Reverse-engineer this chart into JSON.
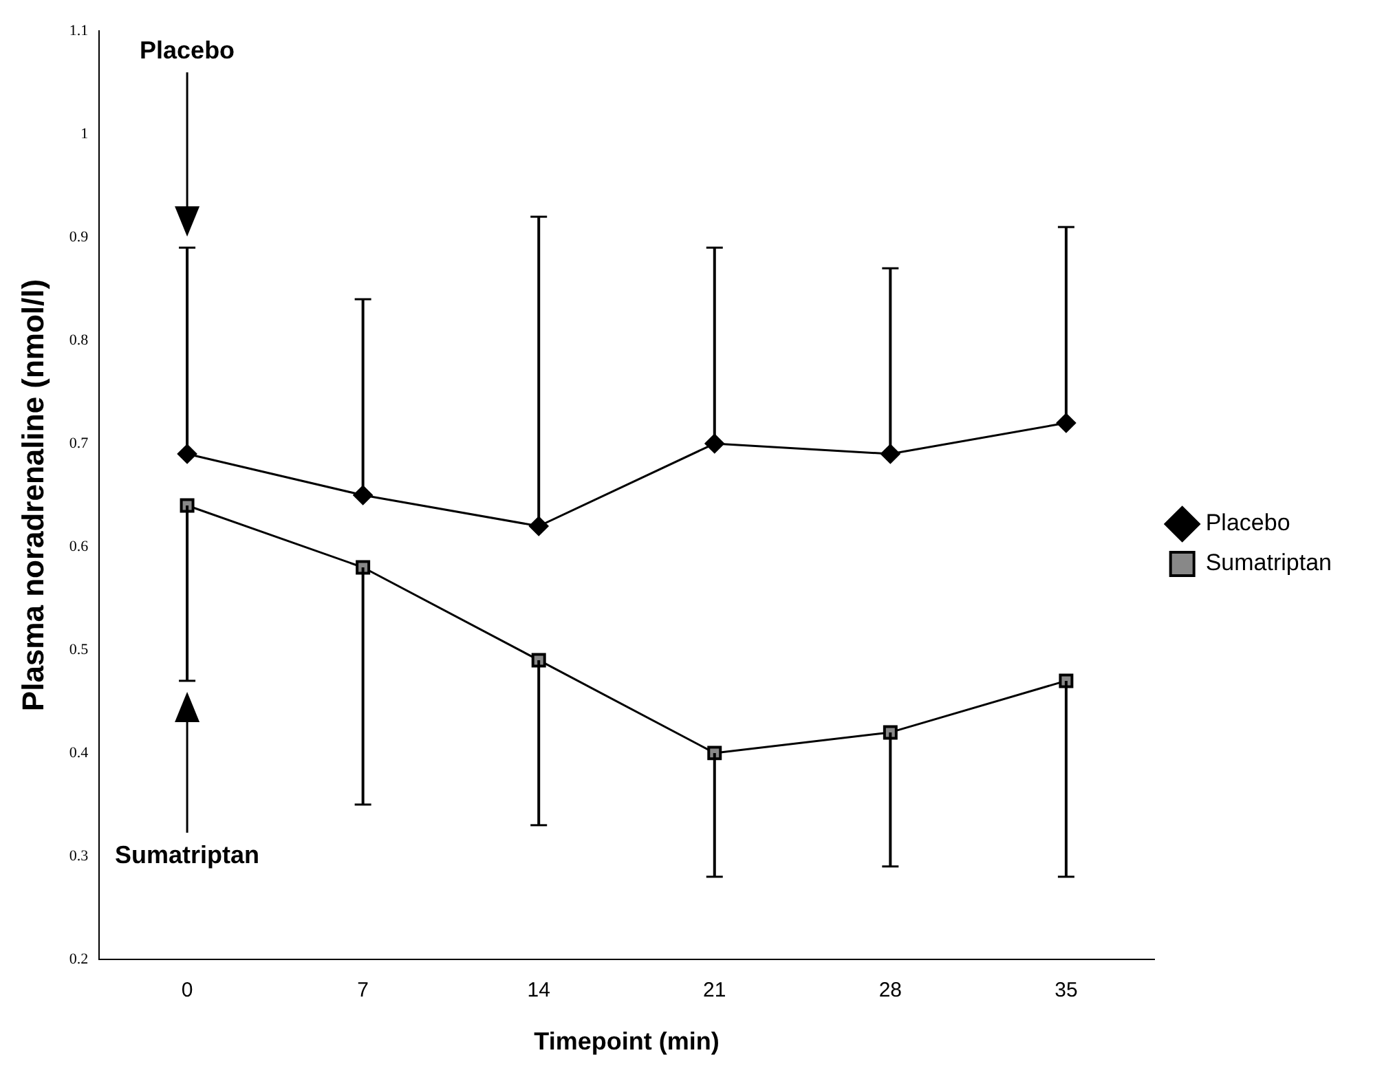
{
  "chart_data": {
    "type": "line",
    "xlabel": "Timepoint (min)",
    "ylabel": "Plasma noradrenaline (nmol/l)",
    "categories": [
      "0",
      "7",
      "14",
      "21",
      "28",
      "35"
    ],
    "series": [
      {
        "name": "Placebo",
        "color": "#000000",
        "marker": "diamond",
        "values": [
          0.69,
          0.65,
          0.62,
          0.7,
          0.69,
          0.72
        ],
        "errors": [
          [
            0.69,
            0.89
          ],
          [
            0.65,
            0.84
          ],
          [
            0.62,
            0.92
          ],
          [
            0.7,
            0.89
          ],
          [
            0.69,
            0.87
          ],
          [
            0.72,
            0.91
          ]
        ]
      },
      {
        "name": "Sumatriptan",
        "color": "#000000",
        "marker": "square",
        "values": [
          0.64,
          0.58,
          0.49,
          0.4,
          0.42,
          0.47
        ],
        "errors": [
          [
            0.47,
            0.64
          ],
          [
            0.35,
            0.58
          ],
          [
            0.33,
            0.49
          ],
          [
            0.28,
            0.4
          ],
          [
            0.29,
            0.42
          ],
          [
            0.28,
            0.47
          ]
        ]
      }
    ],
    "ylim": [
      0.2,
      1.1
    ],
    "yticks": [
      0.2,
      0.3,
      0.4,
      0.5,
      0.6,
      0.7,
      0.8,
      0.9,
      1,
      1.1
    ],
    "grid": false,
    "legend": "right",
    "line_style": "solid",
    "annotations": [
      "Placebo",
      "Sumatriptan"
    ]
  }
}
